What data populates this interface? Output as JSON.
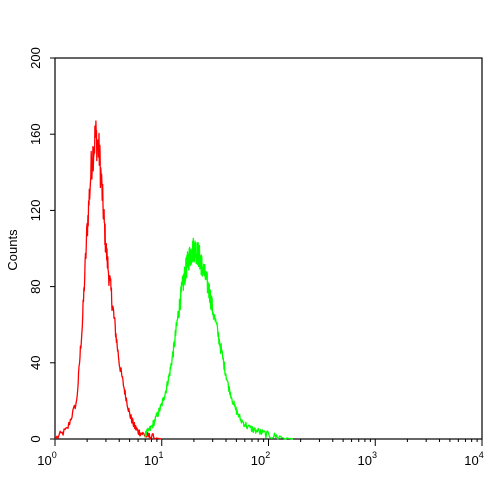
{
  "chart_data": {
    "type": "line",
    "subtype": "flow-cytometry-histogram",
    "xlabel": "",
    "ylabel": "Counts",
    "xscale": "log",
    "xlim": [
      1,
      10000
    ],
    "ylim": [
      0,
      200
    ],
    "y_ticks": [
      0,
      40,
      80,
      120,
      160,
      200
    ],
    "x_ticks": [
      {
        "value": 1,
        "base": "10",
        "exp": "0"
      },
      {
        "value": 10,
        "base": "10",
        "exp": "1"
      },
      {
        "value": 100,
        "base": "10",
        "exp": "2"
      },
      {
        "value": 1000,
        "base": "10",
        "exp": "3"
      },
      {
        "value": 10000,
        "base": "10",
        "exp": "4"
      }
    ],
    "grid": false,
    "legend": "none",
    "series": [
      {
        "color": "#ff0000",
        "x": [
          1.0,
          1.3,
          1.6,
          1.8,
          2.0,
          2.2,
          2.4,
          2.6,
          2.8,
          3.0,
          3.3,
          3.6,
          4.0,
          4.5,
          5.0,
          5.5,
          6.0,
          7.0,
          8.0,
          10.0
        ],
        "y": [
          0,
          5,
          20,
          60,
          110,
          145,
          160,
          150,
          125,
          100,
          80,
          62,
          40,
          25,
          13,
          7,
          4,
          2,
          1,
          0
        ]
      },
      {
        "color": "#00ff00",
        "x": [
          7,
          8,
          9,
          10,
          11,
          12,
          13,
          14,
          15,
          16,
          17,
          18,
          19,
          20,
          21,
          22,
          23,
          24,
          26,
          28,
          30,
          34,
          38,
          42,
          48,
          55,
          65,
          80,
          100,
          130,
          170
        ],
        "y": [
          2,
          6,
          12,
          18,
          26,
          36,
          48,
          62,
          74,
          83,
          90,
          95,
          98,
          100,
          99,
          97,
          94,
          90,
          84,
          77,
          68,
          54,
          40,
          28,
          17,
          10,
          6,
          4,
          2,
          1,
          0
        ]
      }
    ]
  }
}
